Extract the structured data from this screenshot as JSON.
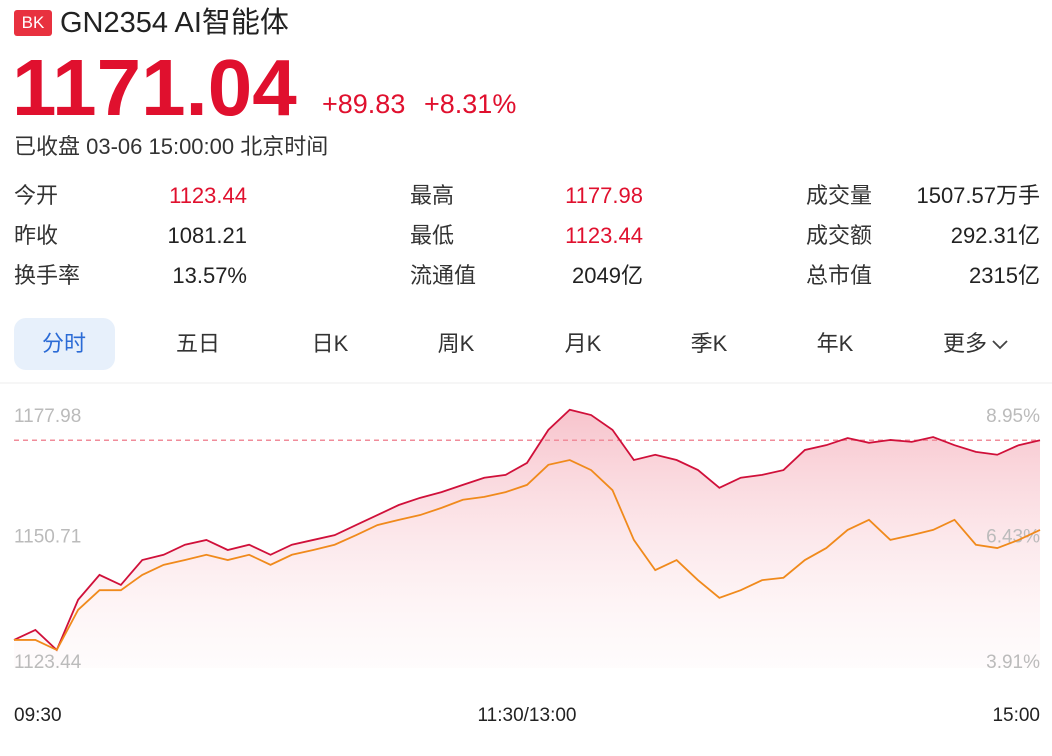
{
  "header": {
    "badge": "BK",
    "title": "GN2354 AI智能体",
    "price": "1171.04",
    "change": "+89.83",
    "change_pct": "+8.31%",
    "status": "已收盘 03-06 15:00:00 北京时间"
  },
  "stats": [
    {
      "label": "今开",
      "value": "1123.44"
    },
    {
      "label": "最高",
      "value": "1177.98"
    },
    {
      "label": "成交量",
      "value": "1507.57万手"
    },
    {
      "label": "昨收",
      "value": "1081.21"
    },
    {
      "label": "最低",
      "value": "1123.44"
    },
    {
      "label": "成交额",
      "value": "292.31亿"
    },
    {
      "label": "换手率",
      "value": "13.57%"
    },
    {
      "label": "流通值",
      "value": "2049亿"
    },
    {
      "label": "总市值",
      "value": "2315亿"
    }
  ],
  "tabs": [
    "分时",
    "五日",
    "日K",
    "周K",
    "月K",
    "季K",
    "年K",
    "更多"
  ],
  "chart_data": {
    "type": "line",
    "categories": [
      "09:30",
      null,
      null,
      null,
      null,
      null,
      null,
      null,
      null,
      null,
      null,
      null,
      null,
      null,
      null,
      null,
      null,
      null,
      null,
      null,
      null,
      null,
      null,
      null,
      "11:30/13:00",
      null,
      null,
      null,
      null,
      null,
      null,
      null,
      null,
      null,
      null,
      null,
      null,
      null,
      null,
      null,
      null,
      null,
      null,
      null,
      null,
      null,
      null,
      null,
      "15:00"
    ],
    "series": [
      {
        "color": "#d0103a",
        "values": [
          1129.3,
          1131.4,
          1127.2,
          1137.7,
          1142.9,
          1140.8,
          1146.0,
          1147.1,
          1149.2,
          1150.2,
          1148.1,
          1149.2,
          1147.1,
          1149.2,
          1150.2,
          1151.2,
          1153.3,
          1155.4,
          1157.5,
          1159.0,
          1160.2,
          1161.7,
          1163.2,
          1163.8,
          1166.3,
          1173.2,
          1177.4,
          1176.3,
          1173.2,
          1166.9,
          1168.0,
          1166.9,
          1164.8,
          1161.1,
          1163.2,
          1163.8,
          1164.8,
          1169.0,
          1170.0,
          1171.5,
          1170.5,
          1171.1,
          1170.7,
          1171.7,
          1170.0,
          1168.6,
          1168.0,
          1170.0,
          1171.04
        ]
      },
      {
        "color": "#f08a1c",
        "values": [
          1129.3,
          1129.3,
          1127.2,
          1135.6,
          1139.7,
          1139.7,
          1142.9,
          1145.0,
          1146.0,
          1147.1,
          1146.0,
          1147.1,
          1145.0,
          1147.1,
          1148.1,
          1149.2,
          1151.2,
          1153.3,
          1154.4,
          1155.4,
          1156.9,
          1158.6,
          1159.2,
          1160.2,
          1161.7,
          1165.9,
          1166.9,
          1164.8,
          1160.6,
          1150.2,
          1143.9,
          1146.0,
          1141.8,
          1138.1,
          1139.7,
          1141.8,
          1142.3,
          1146.0,
          1148.5,
          1152.3,
          1154.4,
          1150.2,
          1151.2,
          1152.3,
          1154.4,
          1149.2,
          1148.5,
          1150.2,
          1152.3
        ]
      }
    ],
    "ylim": [
      1123.44,
      1177.98
    ],
    "yticks": [
      1177.98,
      1150.71,
      1123.44
    ],
    "y2lim": [
      3.91,
      8.95
    ],
    "y2ticks": [
      {
        "value": 8.95,
        "label": "8.95%"
      },
      {
        "value": 6.43,
        "label": "6.43%"
      },
      {
        "value": 3.91,
        "label": "3.91%"
      }
    ],
    "hline": 1171.04,
    "area": true
  }
}
